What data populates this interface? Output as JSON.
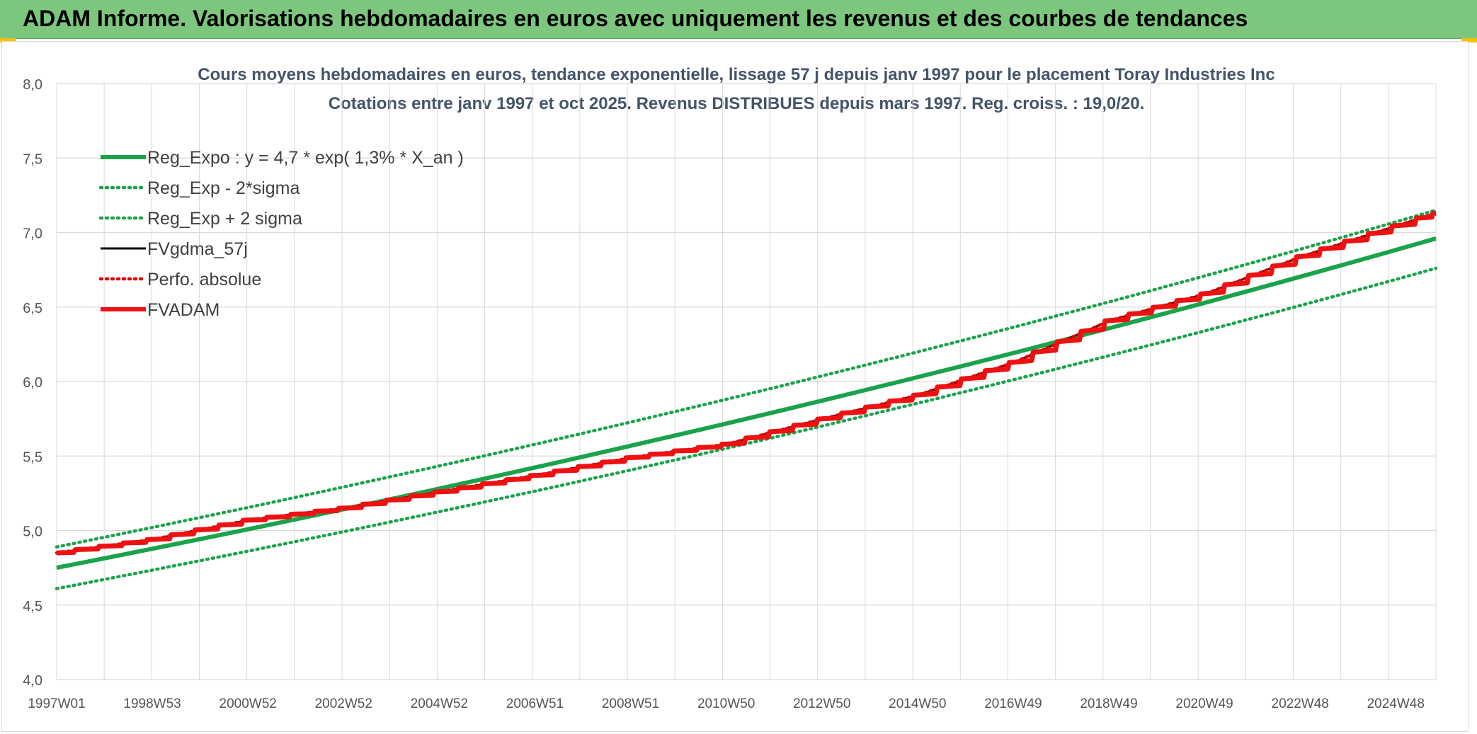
{
  "banner": {
    "title": "ADAM Informe. Valorisations hebdomadaires en euros avec uniquement les revenus et des courbes de tendances"
  },
  "colors": {
    "banner_bg": "#7dc67e",
    "reg_green": "#1aa34a",
    "sigma_green": "#1aa34a",
    "fvgdma_black": "#000000",
    "perfo_red": "#e00000",
    "fvadam_red": "#ee1111",
    "grid": "#d9d9d9",
    "accent_yellow": "#f2c200"
  },
  "chart_data": {
    "type": "line",
    "title_line1": "Cours moyens hebdomadaires en euros, tendance exponentielle, lissage 57 j depuis janv 1997 pour le placement Toray Industries Inc",
    "title_line2": "Cotations entre janv 1997 et oct 2025. Revenus DISTRIBUES depuis mars 1997. Reg. croiss. : 19,0/20.",
    "xlabel": "",
    "ylabel": "",
    "x_range_years": [
      1997.0,
      2025.8
    ],
    "ylim": [
      4.0,
      8.0
    ],
    "y_ticks": [
      "4,0",
      "4,5",
      "5,0",
      "5,5",
      "6,0",
      "6,5",
      "7,0",
      "7,5",
      "8,0"
    ],
    "x_tick_labels": [
      "1997W01",
      "1998W53",
      "2000W52",
      "2002W52",
      "2004W52",
      "2006W51",
      "2008W51",
      "2010W50",
      "2012W50",
      "2014W50",
      "2016W49",
      "2018W49",
      "2020W49",
      "2022W48",
      "2024W48"
    ],
    "grid": true,
    "legend_position": "top-left",
    "series": [
      {
        "name": "Reg_Expo : y = 4,7 * exp( 1,3% *  X_an )",
        "style": "solid-thick",
        "color": "#1aa34a",
        "x": [
          1997.0,
          2025.8
        ],
        "y": [
          4.75,
          6.96
        ],
        "curve": "exponential"
      },
      {
        "name": "Reg_Exp - 2*sigma",
        "style": "dotted",
        "color": "#1aa34a",
        "x": [
          1997.0,
          2025.8
        ],
        "y": [
          4.61,
          6.76
        ],
        "curve": "exponential"
      },
      {
        "name": "Reg_Exp + 2 sigma",
        "style": "dotted",
        "color": "#1aa34a",
        "x": [
          1997.0,
          2025.8
        ],
        "y": [
          4.89,
          7.15
        ],
        "curve": "exponential"
      },
      {
        "name": "FVgdma_57j",
        "style": "solid",
        "color": "#000000",
        "x": [
          1997.0,
          1999.0,
          2001.0,
          2003.0,
          2005.0,
          2007.0,
          2009.0,
          2011.0,
          2013.0,
          2015.0,
          2017.0,
          2019.0,
          2021.0,
          2023.0,
          2025.8
        ],
        "y": [
          4.85,
          4.94,
          5.07,
          5.15,
          5.26,
          5.37,
          5.49,
          5.58,
          5.75,
          5.91,
          6.13,
          6.41,
          6.59,
          6.84,
          7.13
        ]
      },
      {
        "name": "Perfo. absolue",
        "style": "dotted",
        "color": "#e00000",
        "x": [
          1997.0,
          1999.0,
          2001.0,
          2003.0,
          2005.0,
          2007.0,
          2009.0,
          2011.0,
          2013.0,
          2015.0,
          2017.0,
          2019.0,
          2021.0,
          2023.0,
          2025.8
        ],
        "y": [
          4.85,
          4.94,
          5.07,
          5.15,
          5.26,
          5.37,
          5.49,
          5.58,
          5.75,
          5.91,
          6.13,
          6.41,
          6.59,
          6.84,
          7.13
        ]
      },
      {
        "name": "FVADAM",
        "style": "solid-thick-stepped",
        "color": "#ee1111",
        "x": [
          1997.0,
          1999.0,
          2001.0,
          2003.0,
          2005.0,
          2007.0,
          2009.0,
          2011.0,
          2013.0,
          2015.0,
          2017.0,
          2019.0,
          2021.0,
          2023.0,
          2025.8
        ],
        "y": [
          4.85,
          4.94,
          5.07,
          5.15,
          5.26,
          5.37,
          5.49,
          5.58,
          5.75,
          5.91,
          6.13,
          6.41,
          6.59,
          6.84,
          7.13
        ]
      }
    ]
  }
}
